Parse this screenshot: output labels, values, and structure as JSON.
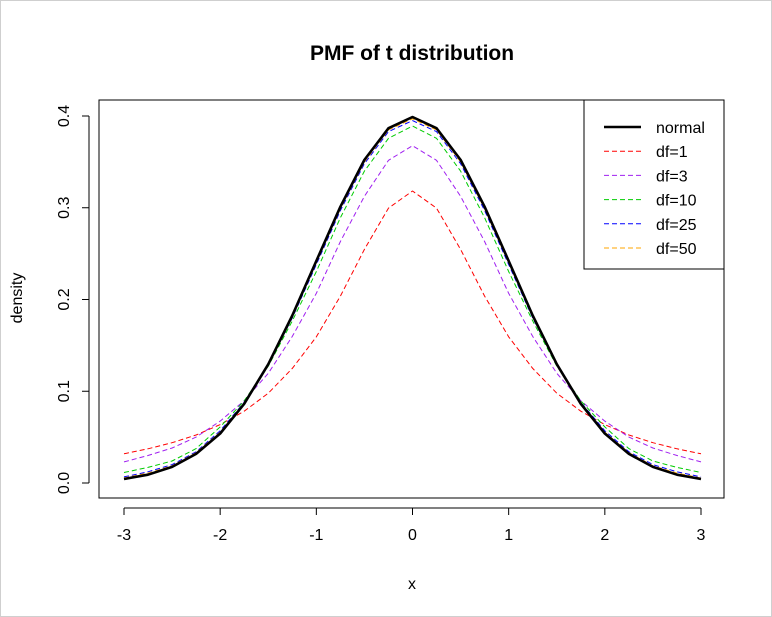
{
  "chart_data": {
    "type": "line",
    "title": "PMF of t distribution",
    "xlabel": "x",
    "ylabel": "density",
    "xlim": [
      -3,
      3
    ],
    "ylim": [
      0,
      0.4
    ],
    "x_ticks": [
      -3,
      -2,
      -1,
      0,
      1,
      2,
      3
    ],
    "y_ticks": [
      0.0,
      0.1,
      0.2,
      0.3,
      0.4
    ],
    "x_tick_labels": [
      "-3",
      "-2",
      "-1",
      "0",
      "1",
      "2",
      "3"
    ],
    "y_tick_labels": [
      "0.0",
      "0.1",
      "0.2",
      "0.3",
      "0.4"
    ],
    "x": [
      -3,
      -2.75,
      -2.5,
      -2.25,
      -2,
      -1.75,
      -1.5,
      -1.25,
      -1,
      -0.75,
      -0.5,
      -0.25,
      0,
      0.25,
      0.5,
      0.75,
      1,
      1.25,
      1.5,
      1.75,
      2,
      2.25,
      2.5,
      2.75,
      3
    ],
    "legend_position": "top-right",
    "grid": false,
    "series": [
      {
        "name": "normal",
        "color": "#000000",
        "style": "solid",
        "width": 2.6,
        "values": [
          0.0044,
          0.0091,
          0.0175,
          0.0317,
          0.054,
          0.0863,
          0.1295,
          0.1826,
          0.242,
          0.3011,
          0.3521,
          0.3867,
          0.3989,
          0.3867,
          0.3521,
          0.3011,
          0.242,
          0.1826,
          0.1295,
          0.0863,
          0.054,
          0.0317,
          0.0175,
          0.0091,
          0.0044
        ]
      },
      {
        "name": "df=1",
        "color": "#ff0000",
        "style": "dashed",
        "width": 1,
        "values": [
          0.0318,
          0.0373,
          0.0439,
          0.0523,
          0.0637,
          0.0783,
          0.0979,
          0.1249,
          0.1592,
          0.2037,
          0.2546,
          0.2996,
          0.3183,
          0.2996,
          0.2546,
          0.2037,
          0.1592,
          0.1249,
          0.0979,
          0.0783,
          0.0637,
          0.0523,
          0.0439,
          0.0373,
          0.0318
        ]
      },
      {
        "name": "df=3",
        "color": "#a020f0",
        "style": "dashed",
        "width": 1,
        "values": [
          0.023,
          0.03,
          0.0382,
          0.05,
          0.0675,
          0.0897,
          0.1196,
          0.1598,
          0.2067,
          0.2632,
          0.3125,
          0.3517,
          0.3676,
          0.3517,
          0.3125,
          0.2632,
          0.2067,
          0.1598,
          0.1196,
          0.0897,
          0.0675,
          0.05,
          0.0382,
          0.03,
          0.023
        ]
      },
      {
        "name": "df=10",
        "color": "#00cc00",
        "style": "dashed",
        "width": 1,
        "values": [
          0.0114,
          0.017,
          0.024,
          0.0375,
          0.0611,
          0.0896,
          0.1274,
          0.1767,
          0.2304,
          0.2892,
          0.34,
          0.3757,
          0.3891,
          0.3757,
          0.34,
          0.2892,
          0.2304,
          0.1767,
          0.1274,
          0.0896,
          0.0611,
          0.0375,
          0.024,
          0.017,
          0.0114
        ]
      },
      {
        "name": "df=25",
        "color": "#0000ff",
        "style": "dashed",
        "width": 1,
        "values": [
          0.0066,
          0.0122,
          0.02,
          0.034,
          0.057,
          0.088,
          0.129,
          0.18,
          0.238,
          0.297,
          0.348,
          0.383,
          0.395,
          0.383,
          0.348,
          0.297,
          0.238,
          0.18,
          0.129,
          0.088,
          0.057,
          0.034,
          0.02,
          0.0122,
          0.0066
        ]
      },
      {
        "name": "df=50",
        "color": "#ffa500",
        "style": "dashed",
        "width": 1,
        "values": [
          0.0055,
          0.0108,
          0.0188,
          0.033,
          0.0555,
          0.0872,
          0.1293,
          0.1813,
          0.24,
          0.299,
          0.35,
          0.3848,
          0.397,
          0.3848,
          0.35,
          0.299,
          0.24,
          0.1813,
          0.1293,
          0.0872,
          0.0555,
          0.033,
          0.0188,
          0.0108,
          0.0055
        ]
      }
    ]
  }
}
